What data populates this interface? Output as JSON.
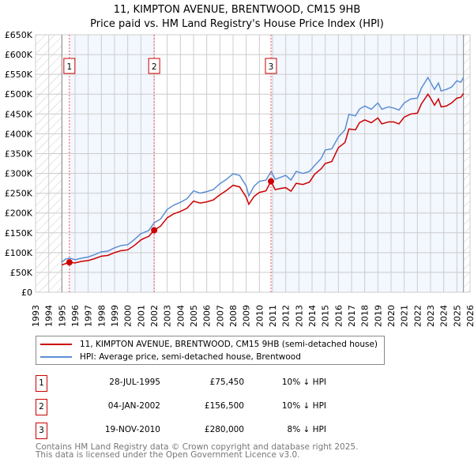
{
  "title_line1": "11, KIMPTON AVENUE, BRENTWOOD, CM15 9HB",
  "title_line2": "Price paid vs. HM Land Registry's House Price Index (HPI)",
  "chart_data": {
    "type": "line",
    "title": "11, KIMPTON AVENUE, BRENTWOOD, CM15 9HB — Price paid vs. HM Land Registry's House Price Index (HPI)",
    "xlim": [
      1993,
      2026
    ],
    "ylim": [
      0,
      650000
    ],
    "x_ticks": [
      "1993",
      "1994",
      "1995",
      "1996",
      "1997",
      "1998",
      "1999",
      "2000",
      "2001",
      "2002",
      "2003",
      "2004",
      "2005",
      "2006",
      "2007",
      "2008",
      "2009",
      "2010",
      "2011",
      "2012",
      "2013",
      "2014",
      "2015",
      "2016",
      "2017",
      "2018",
      "2019",
      "2020",
      "2021",
      "2022",
      "2023",
      "2024",
      "2025",
      "2026"
    ],
    "y_ticks": [
      {
        "v": 0,
        "label": "£0"
      },
      {
        "v": 50000,
        "label": "£50K"
      },
      {
        "v": 100000,
        "label": "£100K"
      },
      {
        "v": 150000,
        "label": "£150K"
      },
      {
        "v": 200000,
        "label": "£200K"
      },
      {
        "v": 250000,
        "label": "£250K"
      },
      {
        "v": 300000,
        "label": "£300K"
      },
      {
        "v": 350000,
        "label": "£350K"
      },
      {
        "v": 400000,
        "label": "£400K"
      },
      {
        "v": 450000,
        "label": "£450K"
      },
      {
        "v": 500000,
        "label": "£500K"
      },
      {
        "v": 550000,
        "label": "£550K"
      },
      {
        "v": 600000,
        "label": "£600K"
      },
      {
        "v": 650000,
        "label": "£650K"
      }
    ],
    "grid": true,
    "series": [
      {
        "name": "11, KIMPTON AVENUE, BRENTWOOD, CM15 9HB (semi-detached house)",
        "color": "#cc0000",
        "points": [
          [
            1995.0,
            69000
          ],
          [
            1995.57,
            75450
          ],
          [
            1996.0,
            74000
          ],
          [
            1996.5,
            78000
          ],
          [
            1997.0,
            80000
          ],
          [
            1997.5,
            85000
          ],
          [
            1998.0,
            91000
          ],
          [
            1998.5,
            93000
          ],
          [
            1999.0,
            100000
          ],
          [
            1999.5,
            105000
          ],
          [
            2000.0,
            107000
          ],
          [
            2000.5,
            118000
          ],
          [
            2001.0,
            132000
          ],
          [
            2001.3,
            137000
          ],
          [
            2001.6,
            141000
          ],
          [
            2002.01,
            156500
          ],
          [
            2002.5,
            167000
          ],
          [
            2003.0,
            188000
          ],
          [
            2003.5,
            198000
          ],
          [
            2004.0,
            204000
          ],
          [
            2004.5,
            212000
          ],
          [
            2005.0,
            230000
          ],
          [
            2005.5,
            225000
          ],
          [
            2006.0,
            228000
          ],
          [
            2006.5,
            233000
          ],
          [
            2007.0,
            246000
          ],
          [
            2007.5,
            257000
          ],
          [
            2008.0,
            270000
          ],
          [
            2008.5,
            266000
          ],
          [
            2009.0,
            240000
          ],
          [
            2009.2,
            222000
          ],
          [
            2009.6,
            242000
          ],
          [
            2010.0,
            252000
          ],
          [
            2010.5,
            256000
          ],
          [
            2010.88,
            280000
          ],
          [
            2011.2,
            259000
          ],
          [
            2011.6,
            262000
          ],
          [
            2012.0,
            264000
          ],
          [
            2012.4,
            255000
          ],
          [
            2012.8,
            275000
          ],
          [
            2013.3,
            272000
          ],
          [
            2013.8,
            278000
          ],
          [
            2014.2,
            298000
          ],
          [
            2014.7,
            312000
          ],
          [
            2015.0,
            325000
          ],
          [
            2015.5,
            330000
          ],
          [
            2016.0,
            365000
          ],
          [
            2016.5,
            378000
          ],
          [
            2016.8,
            412000
          ],
          [
            2017.3,
            410000
          ],
          [
            2017.6,
            428000
          ],
          [
            2018.0,
            435000
          ],
          [
            2018.5,
            428000
          ],
          [
            2019.0,
            440000
          ],
          [
            2019.3,
            425000
          ],
          [
            2019.8,
            430000
          ],
          [
            2020.2,
            430000
          ],
          [
            2020.6,
            425000
          ],
          [
            2021.0,
            442000
          ],
          [
            2021.5,
            450000
          ],
          [
            2022.0,
            452000
          ],
          [
            2022.3,
            475000
          ],
          [
            2022.8,
            500000
          ],
          [
            2023.0,
            490000
          ],
          [
            2023.3,
            472000
          ],
          [
            2023.6,
            488000
          ],
          [
            2023.8,
            468000
          ],
          [
            2024.2,
            470000
          ],
          [
            2024.6,
            478000
          ],
          [
            2025.0,
            490000
          ],
          [
            2025.3,
            492000
          ],
          [
            2025.5,
            502000
          ]
        ]
      },
      {
        "name": "HPI: Average price, semi-detached house, Brentwood",
        "color": "#5b8fd4",
        "points": [
          [
            1995.0,
            76000
          ],
          [
            1995.3,
            84000
          ],
          [
            1995.6,
            86000
          ],
          [
            1996.0,
            82000
          ],
          [
            1996.5,
            86000
          ],
          [
            1997.0,
            89000
          ],
          [
            1997.5,
            95000
          ],
          [
            1998.0,
            102000
          ],
          [
            1998.5,
            104000
          ],
          [
            1999.0,
            112000
          ],
          [
            1999.5,
            118000
          ],
          [
            2000.0,
            120000
          ],
          [
            2000.5,
            133000
          ],
          [
            2001.0,
            148000
          ],
          [
            2001.3,
            152000
          ],
          [
            2001.6,
            156000
          ],
          [
            2002.0,
            175000
          ],
          [
            2002.5,
            185000
          ],
          [
            2003.0,
            209000
          ],
          [
            2003.5,
            220000
          ],
          [
            2004.0,
            227000
          ],
          [
            2004.5,
            236000
          ],
          [
            2005.0,
            256000
          ],
          [
            2005.5,
            250000
          ],
          [
            2006.0,
            254000
          ],
          [
            2006.5,
            259000
          ],
          [
            2007.0,
            274000
          ],
          [
            2007.5,
            285000
          ],
          [
            2008.0,
            299000
          ],
          [
            2008.5,
            295000
          ],
          [
            2009.0,
            268000
          ],
          [
            2009.2,
            243000
          ],
          [
            2009.6,
            268000
          ],
          [
            2010.0,
            280000
          ],
          [
            2010.5,
            283000
          ],
          [
            2010.9,
            305000
          ],
          [
            2011.2,
            285000
          ],
          [
            2011.6,
            290000
          ],
          [
            2012.0,
            295000
          ],
          [
            2012.4,
            283000
          ],
          [
            2012.8,
            305000
          ],
          [
            2013.3,
            300000
          ],
          [
            2013.8,
            305000
          ],
          [
            2014.2,
            320000
          ],
          [
            2014.7,
            338000
          ],
          [
            2015.0,
            359000
          ],
          [
            2015.5,
            362000
          ],
          [
            2016.0,
            392000
          ],
          [
            2016.5,
            410000
          ],
          [
            2016.8,
            449000
          ],
          [
            2017.3,
            445000
          ],
          [
            2017.6,
            462000
          ],
          [
            2018.0,
            470000
          ],
          [
            2018.5,
            462000
          ],
          [
            2019.0,
            478000
          ],
          [
            2019.3,
            462000
          ],
          [
            2019.8,
            468000
          ],
          [
            2020.2,
            465000
          ],
          [
            2020.6,
            460000
          ],
          [
            2021.0,
            478000
          ],
          [
            2021.5,
            488000
          ],
          [
            2022.0,
            490000
          ],
          [
            2022.3,
            515000
          ],
          [
            2022.8,
            542000
          ],
          [
            2023.0,
            530000
          ],
          [
            2023.3,
            512000
          ],
          [
            2023.6,
            528000
          ],
          [
            2023.8,
            508000
          ],
          [
            2024.2,
            512000
          ],
          [
            2024.6,
            518000
          ],
          [
            2025.0,
            534000
          ],
          [
            2025.3,
            530000
          ],
          [
            2025.5,
            542000
          ]
        ]
      }
    ],
    "shaded_ranges": [
      [
        1995.57,
        2002.01
      ],
      [
        2010.88,
        2025.5
      ]
    ],
    "hatched_ranges": [
      [
        1993,
        1995
      ],
      [
        2025.5,
        2026
      ]
    ],
    "sales": [
      {
        "label": "1",
        "x": 1995.57,
        "y": 75450
      },
      {
        "label": "2",
        "x": 2002.01,
        "y": 156500
      },
      {
        "label": "3",
        "x": 2010.88,
        "y": 280000
      }
    ],
    "legend_position": "below"
  },
  "legend": [
    {
      "label": "11, KIMPTON AVENUE, BRENTWOOD, CM15 9HB (semi-detached house)",
      "color": "#cc0000"
    },
    {
      "label": "HPI: Average price, semi-detached house, Brentwood",
      "color": "#5b8fd4"
    }
  ],
  "transactions": [
    {
      "num": "1",
      "date": "28-JUL-1995",
      "price": "£75,450",
      "hpi": "10% ↓ HPI"
    },
    {
      "num": "2",
      "date": "04-JAN-2002",
      "price": "£156,500",
      "hpi": "10% ↓ HPI"
    },
    {
      "num": "3",
      "date": "19-NOV-2010",
      "price": "£280,000",
      "hpi": "8% ↓ HPI"
    }
  ],
  "footer_line1": "Contains HM Land Registry data © Crown copyright and database right 2025.",
  "footer_line2": "This data is licensed under the Open Government Licence v3.0."
}
